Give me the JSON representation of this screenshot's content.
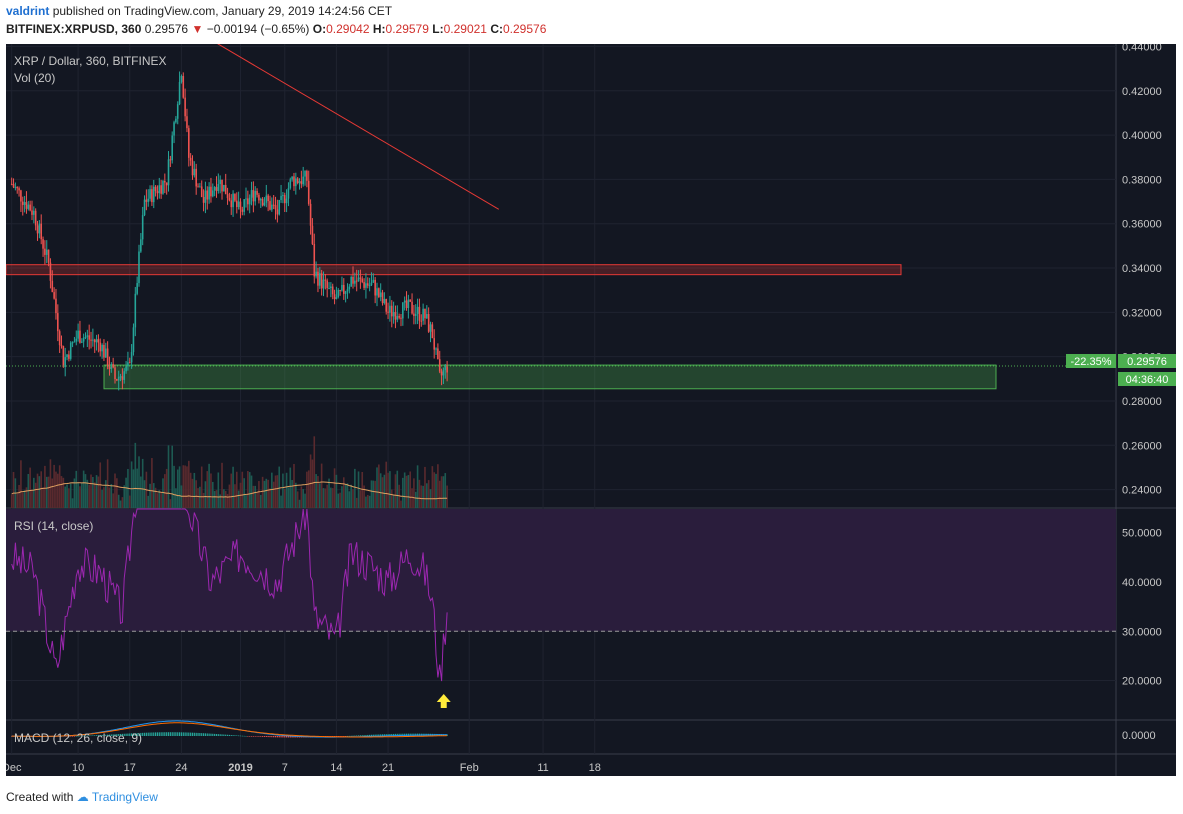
{
  "header": {
    "user": "valdrint",
    "published_text": "published on TradingView.com, January 29, 2019 14:24:56 CET",
    "symbol": "BITFINEX:XRPUSD, 360",
    "price": "0.29576",
    "change": "−0.00194 (−0.65%)",
    "o_label": "O:",
    "o_value": "0.29042",
    "h_label": "H:",
    "h_value": "0.29579",
    "l_label": "L:",
    "l_value": "0.29021",
    "c_label": "C:",
    "c_value": "0.29576"
  },
  "legend": {
    "title": "XRP / Dollar, 360, BITFINEX",
    "vol": "Vol (20)",
    "rsi": "RSI (14, close)",
    "macd": "MACD (12, 26, close, 9)"
  },
  "badges": {
    "change_pct": "-22.35%",
    "price": "0.29576",
    "countdown": "04:36:40"
  },
  "footer": {
    "created_with": "Created with",
    "brand": "TradingView"
  },
  "colors": {
    "background": "#131722",
    "up": "#26a69a",
    "down": "#ef5350",
    "rsi": "#9c27b0",
    "rsi_band": "#2a1d3c",
    "support": "#4caf50",
    "resistance": "#e53935",
    "trendline": "#e53935",
    "arrow": "#ffeb3b"
  },
  "chart_data": [
    {
      "type": "candlestick",
      "title": "XRP / Dollar, 360, BITFINEX",
      "x_ticks": [
        "Dec",
        "10",
        "17",
        "24",
        "2019",
        "7",
        "14",
        "21",
        "Feb",
        "11",
        "18"
      ],
      "y_ticks": [
        "0.44000",
        "0.42000",
        "0.40000",
        "0.38000",
        "0.36000",
        "0.34000",
        "0.32000",
        "0.30000",
        "0.28000",
        "0.26000",
        "0.24000"
      ],
      "ylim": [
        0.2317,
        0.4411
      ],
      "series_close_approx": [
        {
          "date": "2018-12-01",
          "close": 0.378
        },
        {
          "date": "2018-12-04",
          "close": 0.365
        },
        {
          "date": "2018-12-06",
          "close": 0.342
        },
        {
          "date": "2018-12-08",
          "close": 0.298
        },
        {
          "date": "2018-12-10",
          "close": 0.31
        },
        {
          "date": "2018-12-13",
          "close": 0.306
        },
        {
          "date": "2018-12-15",
          "close": 0.29
        },
        {
          "date": "2018-12-17",
          "close": 0.295
        },
        {
          "date": "2018-12-18",
          "close": 0.335
        },
        {
          "date": "2018-12-19",
          "close": 0.37
        },
        {
          "date": "2018-12-22",
          "close": 0.38
        },
        {
          "date": "2018-12-24",
          "close": 0.43
        },
        {
          "date": "2018-12-25",
          "close": 0.39
        },
        {
          "date": "2018-12-27",
          "close": 0.37
        },
        {
          "date": "2018-12-29",
          "close": 0.38
        },
        {
          "date": "2019-01-01",
          "close": 0.365
        },
        {
          "date": "2019-01-03",
          "close": 0.375
        },
        {
          "date": "2019-01-06",
          "close": 0.365
        },
        {
          "date": "2019-01-08",
          "close": 0.38
        },
        {
          "date": "2019-01-10",
          "close": 0.38
        },
        {
          "date": "2019-01-11",
          "close": 0.338
        },
        {
          "date": "2019-01-14",
          "close": 0.325
        },
        {
          "date": "2019-01-16",
          "close": 0.335
        },
        {
          "date": "2019-01-19",
          "close": 0.332
        },
        {
          "date": "2019-01-21",
          "close": 0.32
        },
        {
          "date": "2019-01-24",
          "close": 0.322
        },
        {
          "date": "2019-01-26",
          "close": 0.318
        },
        {
          "date": "2019-01-27",
          "close": 0.31
        },
        {
          "date": "2019-01-28",
          "close": 0.29
        },
        {
          "date": "2019-01-29",
          "close": 0.29576
        }
      ],
      "resistance_zone": [
        0.337,
        0.3415
      ],
      "support_zone": [
        0.2855,
        0.2962
      ],
      "trendline": [
        {
          "date": "2018-12-28",
          "value": 0.443
        },
        {
          "date": "2019-02-05",
          "value": 0.3665
        }
      ]
    },
    {
      "type": "line",
      "title": "RSI (14, close)",
      "y_ticks": [
        "50.0000",
        "40.0000",
        "30.0000",
        "20.0000"
      ],
      "ylim": [
        12,
        55
      ],
      "overbought_line": 30,
      "series": [
        {
          "date": "2018-12-01",
          "rsi": 45
        },
        {
          "date": "2018-12-04",
          "rsi": 42
        },
        {
          "date": "2018-12-07",
          "rsi": 22
        },
        {
          "date": "2018-12-10",
          "rsi": 44
        },
        {
          "date": "2018-12-13",
          "rsi": 42
        },
        {
          "date": "2018-12-16",
          "rsi": 34
        },
        {
          "date": "2018-12-18",
          "rsi": 60
        },
        {
          "date": "2018-12-24",
          "rsi": 60
        },
        {
          "date": "2018-12-28",
          "rsi": 40
        },
        {
          "date": "2019-01-01",
          "rsi": 46
        },
        {
          "date": "2019-01-06",
          "rsi": 40
        },
        {
          "date": "2019-01-10",
          "rsi": 55
        },
        {
          "date": "2019-01-11",
          "rsi": 33
        },
        {
          "date": "2019-01-14",
          "rsi": 28
        },
        {
          "date": "2019-01-16",
          "rsi": 46
        },
        {
          "date": "2019-01-19",
          "rsi": 43
        },
        {
          "date": "2019-01-21",
          "rsi": 40
        },
        {
          "date": "2019-01-24",
          "rsi": 46
        },
        {
          "date": "2019-01-26",
          "rsi": 42
        },
        {
          "date": "2019-01-27",
          "rsi": 36
        },
        {
          "date": "2019-01-28",
          "rsi": 20
        },
        {
          "date": "2019-01-29",
          "rsi": 35
        }
      ]
    },
    {
      "type": "line",
      "title": "MACD (12, 26, close, 9)",
      "y_ticks": [
        "0.0000"
      ]
    }
  ]
}
